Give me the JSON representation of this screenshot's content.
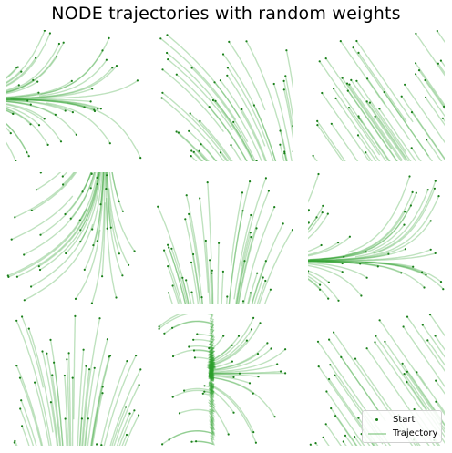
{
  "chart_data": {
    "type": "line",
    "title": "NODE trajectories with random weights",
    "grid": false,
    "axes_visible": false,
    "legend": {
      "placement": "lower-right",
      "entries": [
        {
          "label": "Start",
          "kind": "marker"
        },
        {
          "label": "Trajectory",
          "kind": "line"
        }
      ]
    },
    "colors": {
      "trajectory": "#2ca02c",
      "start": "#1a7f1a"
    },
    "panels": [
      {
        "id": 1,
        "xlim": [
          -1,
          1
        ],
        "ylim": [
          -1,
          1
        ],
        "attractor": [
          -1.0,
          -0.05
        ],
        "field": "converge-left",
        "seed": 11
      },
      {
        "id": 2,
        "xlim": [
          -1,
          1
        ],
        "ylim": [
          -1,
          1
        ],
        "attractor": [
          0.55,
          -1.0
        ],
        "field": "fan-down-right",
        "seed": 23
      },
      {
        "id": 3,
        "xlim": [
          -1,
          1
        ],
        "ylim": [
          -1,
          1
        ],
        "attractor": [
          1.0,
          -1.0
        ],
        "field": "diagonal-down-right",
        "seed": 37
      },
      {
        "id": 4,
        "xlim": [
          -1,
          1
        ],
        "ylim": [
          -1,
          1
        ],
        "attractor": [
          0.45,
          1.0
        ],
        "field": "up-curve",
        "seed": 41
      },
      {
        "id": 5,
        "xlim": [
          -1,
          1
        ],
        "ylim": [
          -1,
          1
        ],
        "attractor": [
          0.2,
          -1.0
        ],
        "field": "down",
        "seed": 53
      },
      {
        "id": 6,
        "xlim": [
          -1,
          1
        ],
        "ylim": [
          -1,
          1
        ],
        "attractor": [
          -1.0,
          -0.35
        ],
        "field": "converge-left",
        "seed": 67
      },
      {
        "id": 7,
        "xlim": [
          -1,
          1
        ],
        "ylim": [
          -1,
          1
        ],
        "attractor": [
          0.3,
          -1.0
        ],
        "field": "down",
        "seed": 71
      },
      {
        "id": 8,
        "xlim": [
          -1,
          1
        ],
        "ylim": [
          -1,
          1
        ],
        "attractor": [
          -1.0,
          0.1
        ],
        "field": "converge-left-then-down",
        "seed": 83
      },
      {
        "id": 9,
        "xlim": [
          -1,
          1
        ],
        "ylim": [
          -1,
          1
        ],
        "attractor": [
          1.0,
          -1.0
        ],
        "field": "diagonal-down-right",
        "seed": 97
      }
    ]
  }
}
